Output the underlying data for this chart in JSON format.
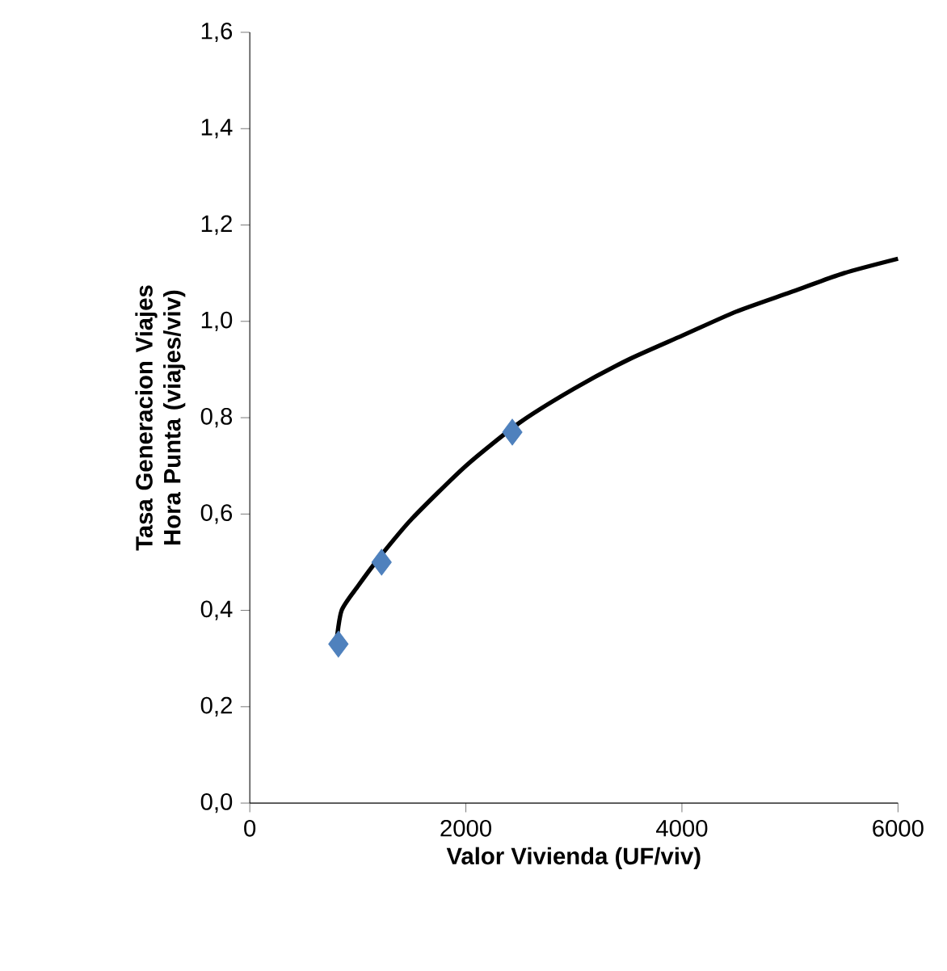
{
  "chart_data": {
    "type": "scatter",
    "xlabel": "Valor Vivienda (UF/viv)",
    "ylabel": "Tasa Generacion Viajes Hora Punta (viajes/viv)",
    "xlim": [
      0,
      6000
    ],
    "ylim": [
      0,
      1.6
    ],
    "xticks": [
      0,
      2000,
      4000,
      6000
    ],
    "yticks": [
      {
        "value": 0,
        "label": "0,0"
      },
      {
        "value": 0.2,
        "label": "0,2"
      },
      {
        "value": 0.4,
        "label": "0,4"
      },
      {
        "value": 0.6,
        "label": "0,6"
      },
      {
        "value": 0.8,
        "label": "0,8"
      },
      {
        "value": 1.0,
        "label": "1,0"
      },
      {
        "value": 1.2,
        "label": "1,2"
      },
      {
        "value": 1.4,
        "label": "1,4"
      },
      {
        "value": 1.6,
        "label": "1,6"
      }
    ],
    "series": [
      {
        "type": "line",
        "color": "#000000",
        "marker": "none",
        "x": [
          800,
          850,
          1000,
          1200,
          1500,
          2000,
          2500,
          3000,
          3500,
          4000,
          4500,
          5000,
          5500,
          6000
        ],
        "values": [
          0.33,
          0.4,
          0.45,
          0.51,
          0.59,
          0.7,
          0.79,
          0.86,
          0.92,
          0.97,
          1.02,
          1.06,
          1.1,
          1.13
        ]
      },
      {
        "color": "#4f81bd",
        "marker": "diamond",
        "x": [
          820,
          1220,
          2430
        ],
        "values": [
          0.33,
          0.5,
          0.77
        ]
      }
    ]
  }
}
